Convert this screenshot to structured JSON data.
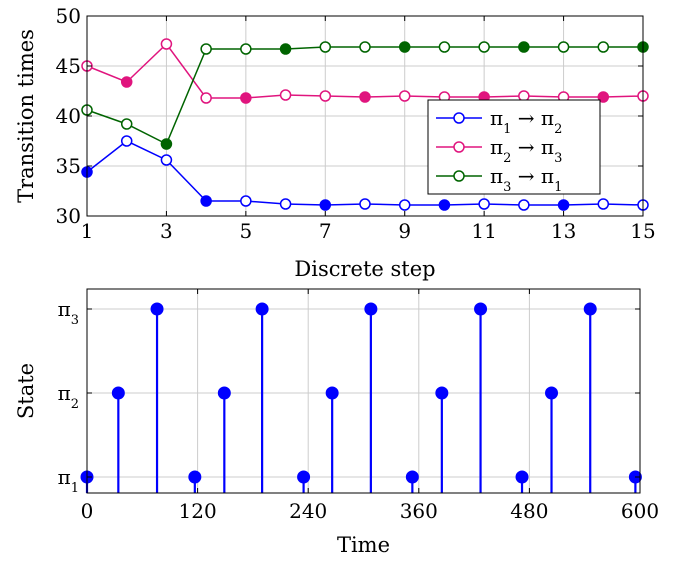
{
  "chart_data": [
    {
      "type": "line",
      "xlabel": "Discrete step",
      "ylabel": "Transition times",
      "xlim": [
        1,
        15
      ],
      "ylim": [
        30,
        50
      ],
      "xticks": [
        1,
        3,
        5,
        7,
        9,
        11,
        13,
        15
      ],
      "yticks": [
        30,
        35,
        40,
        45,
        50
      ],
      "grid": true,
      "legend_position": "center-right",
      "x": [
        1,
        2,
        3,
        4,
        5,
        6,
        7,
        8,
        9,
        10,
        11,
        12,
        13,
        14,
        15
      ],
      "series": [
        {
          "name": "π1 → π2",
          "name_html": "π<tspan baseline-shift='sub' font-size='13'>1</tspan> → π<tspan baseline-shift='sub' font-size='13'>2</tspan>",
          "color": "#0000ff",
          "values": [
            34.4,
            37.5,
            35.6,
            31.5,
            31.5,
            31.2,
            31.1,
            31.2,
            31.1,
            31.1,
            31.2,
            31.1,
            31.1,
            31.2,
            31.1
          ],
          "filled": [
            true,
            false,
            false,
            true,
            false,
            false,
            true,
            false,
            false,
            true,
            false,
            false,
            true,
            false,
            false
          ]
        },
        {
          "name": "π2 → π3",
          "color": "#e0157e",
          "values": [
            45.0,
            43.4,
            47.2,
            41.8,
            41.8,
            42.1,
            42.0,
            41.9,
            42.0,
            41.9,
            41.9,
            42.0,
            41.9,
            41.9,
            42.0
          ],
          "filled": [
            false,
            true,
            false,
            false,
            true,
            false,
            false,
            true,
            false,
            false,
            true,
            false,
            false,
            true,
            false
          ]
        },
        {
          "name": "π3 → π1",
          "color": "#006400",
          "values": [
            40.6,
            39.2,
            37.2,
            46.7,
            46.7,
            46.7,
            46.9,
            46.9,
            46.9,
            46.9,
            46.9,
            46.9,
            46.9,
            46.9,
            46.9
          ],
          "filled": [
            false,
            false,
            true,
            false,
            false,
            true,
            false,
            false,
            true,
            false,
            false,
            true,
            false,
            false,
            true
          ]
        }
      ]
    },
    {
      "type": "stem",
      "xlabel": "Time",
      "ylabel": "State",
      "xlim": [
        0,
        600
      ],
      "xticks": [
        0,
        120,
        240,
        360,
        480,
        600
      ],
      "ycategories": [
        "π1",
        "π2",
        "π3"
      ],
      "grid": true,
      "color": "#0000ff",
      "points": [
        {
          "x": 0,
          "state": 1
        },
        {
          "x": 34,
          "state": 2
        },
        {
          "x": 76,
          "state": 3
        },
        {
          "x": 117,
          "state": 1
        },
        {
          "x": 149,
          "state": 2
        },
        {
          "x": 190,
          "state": 3
        },
        {
          "x": 235,
          "state": 1
        },
        {
          "x": 266,
          "state": 2
        },
        {
          "x": 308,
          "state": 3
        },
        {
          "x": 353,
          "state": 1
        },
        {
          "x": 385,
          "state": 2
        },
        {
          "x": 427,
          "state": 3
        },
        {
          "x": 472,
          "state": 1
        },
        {
          "x": 504,
          "state": 2
        },
        {
          "x": 546,
          "state": 3
        },
        {
          "x": 595,
          "state": 1
        }
      ]
    }
  ]
}
